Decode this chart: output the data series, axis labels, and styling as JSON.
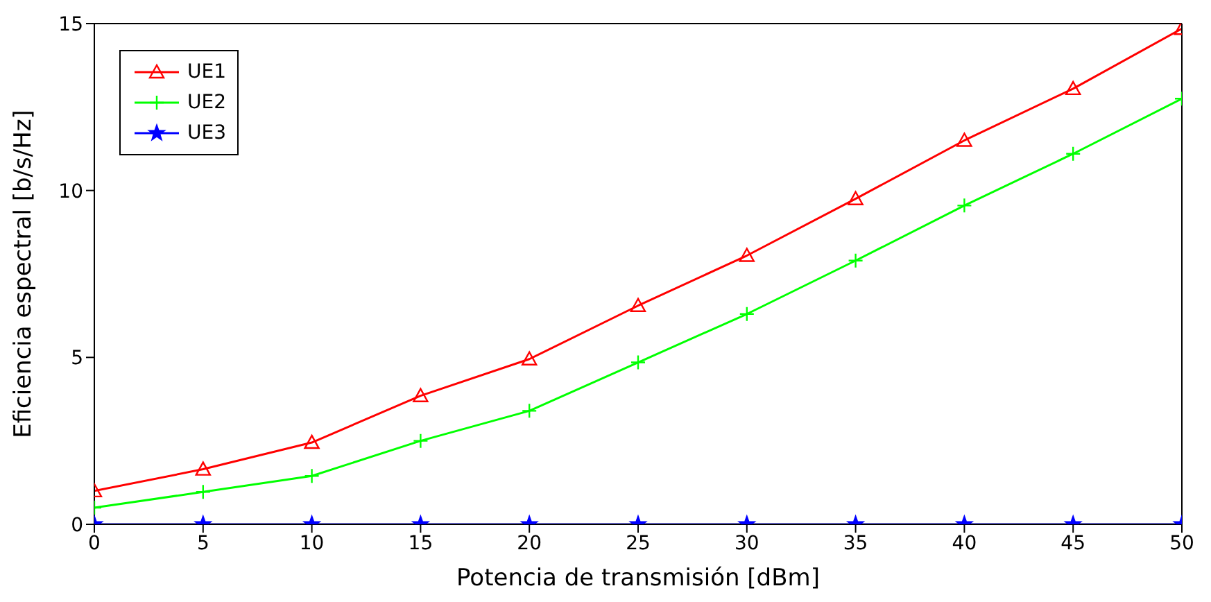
{
  "chart_data": {
    "type": "line",
    "xlabel": "Potencia de transmisión [dBm]",
    "ylabel": "Eficiencia espectral [b/s/Hz]",
    "x": [
      0,
      5,
      10,
      15,
      20,
      25,
      30,
      35,
      40,
      45,
      50
    ],
    "xlim": [
      0,
      50
    ],
    "xticks": [
      0,
      5,
      10,
      15,
      20,
      25,
      30,
      35,
      40,
      45,
      50
    ],
    "ylim": [
      0,
      15
    ],
    "yticks": [
      0,
      5,
      10,
      15
    ],
    "grid": false,
    "legend": "top left",
    "series": [
      {
        "name": "UE1",
        "color": "#ff0000",
        "marker": "triangle",
        "values": [
          1.0,
          1.65,
          2.45,
          3.85,
          4.95,
          6.55,
          8.05,
          9.75,
          11.5,
          13.05,
          14.85
        ]
      },
      {
        "name": "UE2",
        "color": "#00ff00",
        "marker": "cross",
        "values": [
          0.5,
          0.97,
          1.45,
          2.5,
          3.4,
          4.85,
          6.3,
          7.9,
          9.55,
          11.1,
          12.75
        ]
      },
      {
        "name": "UE3",
        "color": "#0000ff",
        "marker": "star",
        "values": [
          0,
          0,
          0,
          0,
          0,
          0,
          0,
          0,
          0,
          0,
          0
        ]
      }
    ]
  }
}
